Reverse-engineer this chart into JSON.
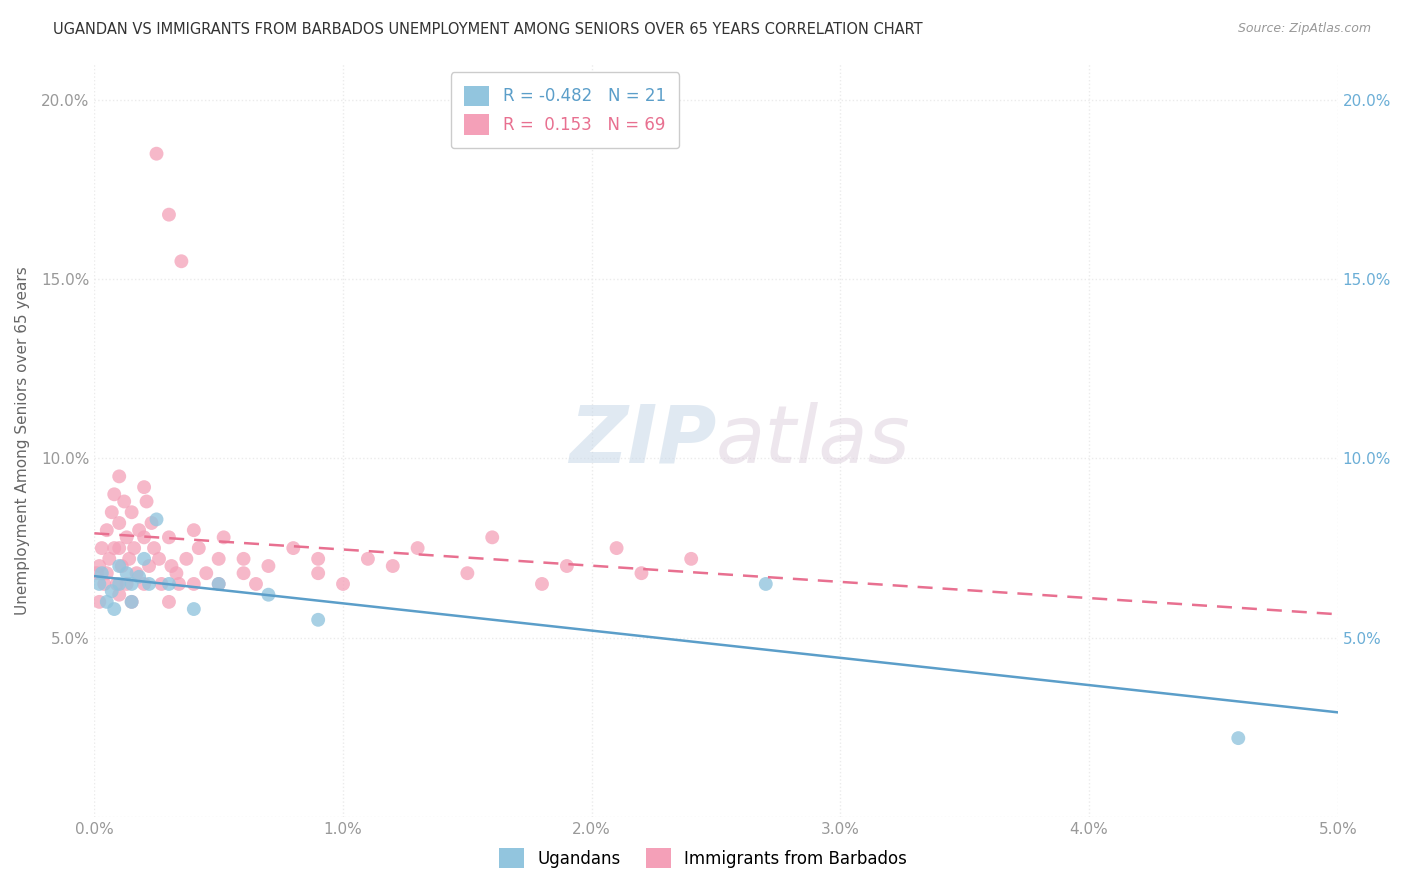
{
  "title": "UGANDAN VS IMMIGRANTS FROM BARBADOS UNEMPLOYMENT AMONG SENIORS OVER 65 YEARS CORRELATION CHART",
  "source": "Source: ZipAtlas.com",
  "ylabel": "Unemployment Among Seniors over 65 years",
  "xlim": [
    0.0,
    0.05
  ],
  "ylim": [
    0.0,
    0.21
  ],
  "xticks": [
    0.0,
    0.01,
    0.02,
    0.03,
    0.04,
    0.05
  ],
  "yticks": [
    0.0,
    0.05,
    0.1,
    0.15,
    0.2
  ],
  "xticklabels": [
    "0.0%",
    "1.0%",
    "2.0%",
    "3.0%",
    "4.0%",
    "5.0%"
  ],
  "yticklabels_left": [
    "",
    "5.0%",
    "10.0%",
    "15.0%",
    "20.0%"
  ],
  "yticklabels_right": [
    "",
    "5.0%",
    "10.0%",
    "15.0%",
    "20.0%"
  ],
  "legend_ugandan": "Ugandans",
  "legend_barbados": "Immigrants from Barbados",
  "R_ugandan": -0.482,
  "N_ugandan": 21,
  "R_barbados": 0.153,
  "N_barbados": 69,
  "color_ugandan": "#92C5DE",
  "color_barbados": "#F4A0B8",
  "color_ugandan_line": "#5B9EC9",
  "color_barbados_line": "#E87090",
  "ugandan_x": [
    0.0002,
    0.0003,
    0.0005,
    0.0007,
    0.0008,
    0.001,
    0.001,
    0.0013,
    0.0015,
    0.0015,
    0.0018,
    0.002,
    0.0022,
    0.0025,
    0.003,
    0.004,
    0.005,
    0.007,
    0.009,
    0.027,
    0.046
  ],
  "ugandan_y": [
    0.065,
    0.068,
    0.06,
    0.063,
    0.058,
    0.07,
    0.065,
    0.068,
    0.065,
    0.06,
    0.067,
    0.072,
    0.065,
    0.083,
    0.065,
    0.058,
    0.065,
    0.062,
    0.055,
    0.065,
    0.022
  ],
  "barbados_x": [
    0.0001,
    0.0002,
    0.0002,
    0.0003,
    0.0004,
    0.0005,
    0.0005,
    0.0006,
    0.0007,
    0.0008,
    0.0008,
    0.0009,
    0.001,
    0.001,
    0.001,
    0.001,
    0.0011,
    0.0012,
    0.0013,
    0.0013,
    0.0014,
    0.0015,
    0.0015,
    0.0016,
    0.0017,
    0.0018,
    0.002,
    0.002,
    0.002,
    0.0021,
    0.0022,
    0.0023,
    0.0024,
    0.0025,
    0.0026,
    0.0027,
    0.003,
    0.003,
    0.003,
    0.0031,
    0.0033,
    0.0034,
    0.0035,
    0.0037,
    0.004,
    0.004,
    0.0042,
    0.0045,
    0.005,
    0.005,
    0.0052,
    0.006,
    0.006,
    0.0065,
    0.007,
    0.008,
    0.009,
    0.009,
    0.01,
    0.011,
    0.012,
    0.013,
    0.015,
    0.016,
    0.018,
    0.019,
    0.021,
    0.022,
    0.024
  ],
  "barbados_y": [
    0.068,
    0.07,
    0.06,
    0.075,
    0.065,
    0.08,
    0.068,
    0.072,
    0.085,
    0.09,
    0.075,
    0.065,
    0.095,
    0.082,
    0.075,
    0.062,
    0.07,
    0.088,
    0.078,
    0.065,
    0.072,
    0.085,
    0.06,
    0.075,
    0.068,
    0.08,
    0.092,
    0.078,
    0.065,
    0.088,
    0.07,
    0.082,
    0.075,
    0.185,
    0.072,
    0.065,
    0.078,
    0.168,
    0.06,
    0.07,
    0.068,
    0.065,
    0.155,
    0.072,
    0.08,
    0.065,
    0.075,
    0.068,
    0.072,
    0.065,
    0.078,
    0.068,
    0.072,
    0.065,
    0.07,
    0.075,
    0.068,
    0.072,
    0.065,
    0.072,
    0.07,
    0.075,
    0.068,
    0.078,
    0.065,
    0.07,
    0.075,
    0.068,
    0.072
  ],
  "watermark_zip": "ZIP",
  "watermark_atlas": "atlas",
  "background_color": "#FFFFFF",
  "grid_color": "#EBEBEB"
}
